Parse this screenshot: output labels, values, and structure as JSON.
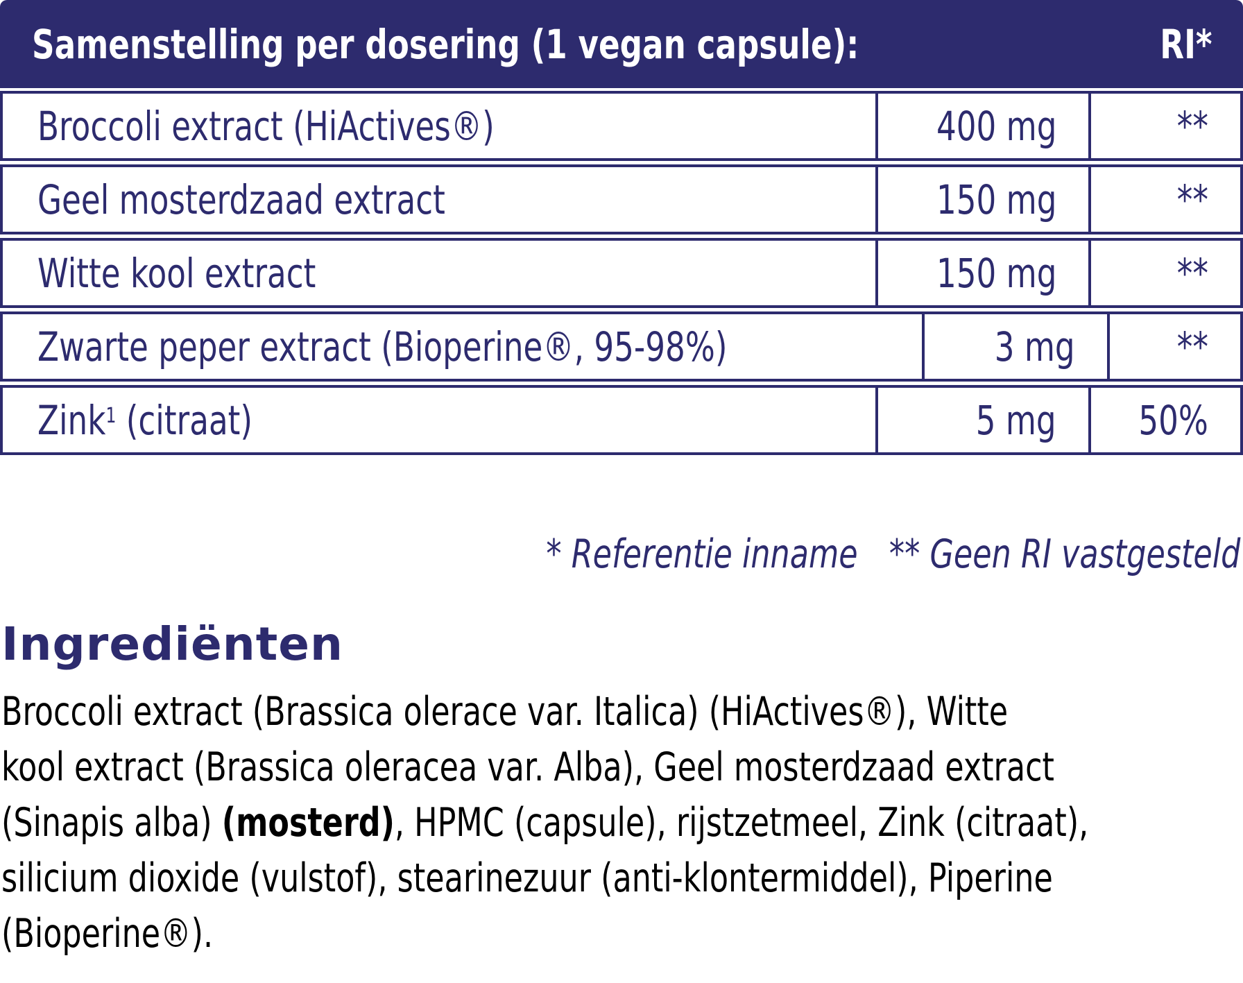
{
  "colors": {
    "navy": "#2d2b6e",
    "white": "#ffffff",
    "black": "#000000"
  },
  "table": {
    "header": {
      "title": "Samenstelling per dosering (1 vegan capsule):",
      "ri_label": "RI*"
    },
    "rows": [
      {
        "name": "Broccoli extract (HiActives®)",
        "amount": "400 mg",
        "ri": "**"
      },
      {
        "name": "Geel mosterdzaad extract",
        "amount": "150 mg",
        "ri": "**"
      },
      {
        "name": "Witte kool extract",
        "amount": "150 mg",
        "ri": "**"
      },
      {
        "name": "Zwarte peper extract (Bioperine®, 95-98%)",
        "amount": "3 mg",
        "ri": "**"
      },
      {
        "name_pre": "Zink",
        "name_sup": "1",
        "name_post": " (citraat)",
        "amount": "5 mg",
        "ri": "50%"
      }
    ],
    "footnotes": {
      "reference": "* Referentie inname",
      "no_ri": "** Geen RI vastgesteld"
    }
  },
  "ingredients": {
    "heading": "Ingrediënten",
    "lines": [
      {
        "text": "Broccoli extract (Brassica olerace var. Italica) (HiActives®), Witte"
      },
      {
        "text": "kool extract (Brassica oleracea var. Alba), Geel mosterdzaad extract"
      },
      {
        "pre": "(Sinapis alba) ",
        "bold": "(mosterd)",
        "post": ", HPMC (capsule), rijstzetmeel, Zink (citraat),"
      },
      {
        "text": "silicium dioxide (vulstof), stearinezuur (anti-klontermiddel), Piperine"
      },
      {
        "text": "(Bioperine®)."
      }
    ]
  }
}
